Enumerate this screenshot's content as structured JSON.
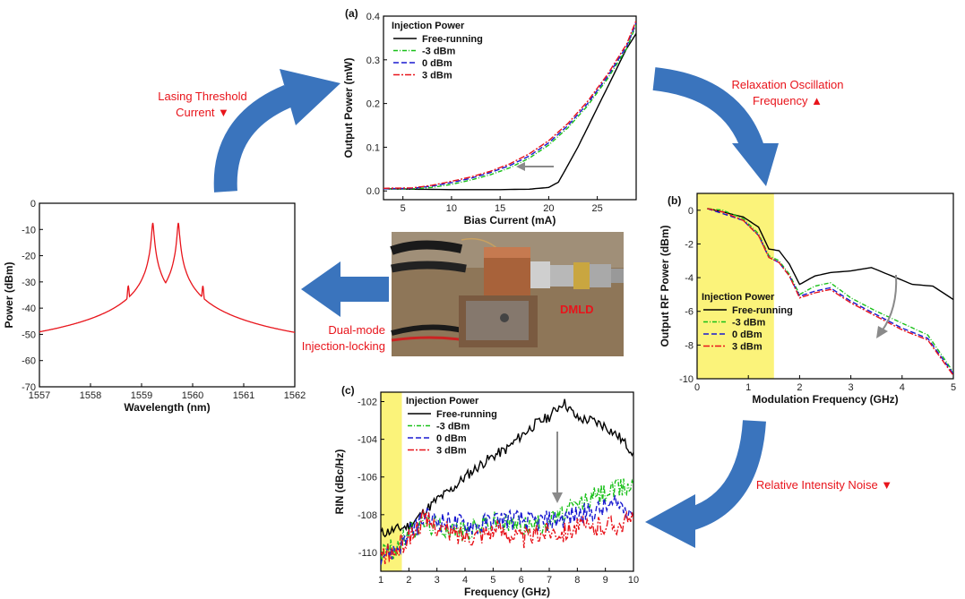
{
  "annotations": {
    "lasing": [
      "Lasing Threshold",
      "Current ▼"
    ],
    "relax": [
      "Relaxation Oscillation",
      "Frequency ▲"
    ],
    "rin": "Relative Intensity Noise ▼",
    "dual": [
      "Dual-mode",
      "Injection-locking"
    ],
    "device": "DMLD"
  },
  "colors": {
    "series": [
      "#000000",
      "#18c018",
      "#1a1ad0",
      "#e8141b"
    ],
    "arrow": "#3a74bd",
    "highlight": "#fbf37a",
    "annotation": "#e8141b"
  },
  "chart_data": [
    {
      "id": "a",
      "panel_label": "(a)",
      "type": "line",
      "xlabel": "Bias Current (mA)",
      "ylabel": "Output Power (mW)",
      "xlim": [
        3,
        29
      ],
      "ylim": [
        -0.02,
        0.4
      ],
      "xticks": [
        5,
        10,
        15,
        20,
        25
      ],
      "yticks": [
        0.0,
        0.1,
        0.2,
        0.3,
        0.4
      ],
      "yticklabels": [
        "0.0",
        "0.1",
        "0.2",
        "0.3",
        "0.4"
      ],
      "legend_title": "Injection Power",
      "legend_position": "top-left",
      "series": [
        {
          "name": "Free-running",
          "dash": "",
          "x": [
            3,
            6,
            10,
            15,
            18,
            20,
            21,
            22,
            23,
            24,
            25,
            26,
            27,
            28,
            29
          ],
          "y": [
            0.005,
            0.004,
            0.003,
            0.003,
            0.004,
            0.008,
            0.02,
            0.06,
            0.1,
            0.145,
            0.19,
            0.235,
            0.28,
            0.325,
            0.36
          ]
        },
        {
          "name": "-3 dBm",
          "dash": "5,2,1,2",
          "x": [
            3,
            6,
            8,
            10,
            12,
            14,
            16,
            18,
            20,
            22,
            24,
            26,
            28,
            29
          ],
          "y": [
            0.005,
            0.005,
            0.008,
            0.015,
            0.025,
            0.037,
            0.053,
            0.075,
            0.105,
            0.145,
            0.195,
            0.255,
            0.325,
            0.38
          ]
        },
        {
          "name": "0 dBm",
          "dash": "6,3",
          "x": [
            3,
            6,
            8,
            10,
            12,
            14,
            16,
            18,
            20,
            22,
            24,
            26,
            28,
            29
          ],
          "y": [
            0.005,
            0.006,
            0.011,
            0.019,
            0.029,
            0.042,
            0.058,
            0.08,
            0.11,
            0.15,
            0.2,
            0.26,
            0.33,
            0.385
          ]
        },
        {
          "name": "3 dBm",
          "dash": "7,2,2,2",
          "x": [
            3,
            6,
            8,
            10,
            12,
            14,
            16,
            18,
            20,
            22,
            24,
            26,
            28,
            29
          ],
          "y": [
            0.006,
            0.007,
            0.013,
            0.022,
            0.032,
            0.045,
            0.062,
            0.085,
            0.115,
            0.155,
            0.205,
            0.265,
            0.335,
            0.39
          ]
        }
      ]
    },
    {
      "id": "b",
      "panel_label": "(b)",
      "type": "line",
      "xlabel": "Modulation Frequency (GHz)",
      "ylabel": "Output RF Power (dBm)",
      "xlim": [
        0,
        5
      ],
      "ylim": [
        -10,
        1
      ],
      "xticks": [
        0,
        1,
        2,
        3,
        4,
        5
      ],
      "yticks": [
        -10,
        -8,
        -6,
        -4,
        -2,
        0
      ],
      "highlight_x": [
        0,
        1.5
      ],
      "legend_title": "Injection Power",
      "legend_position": "lower-left",
      "series": [
        {
          "name": "Free-running",
          "dash": "",
          "x": [
            0.2,
            0.5,
            0.9,
            1.2,
            1.4,
            1.6,
            1.8,
            2.0,
            2.3,
            2.6,
            3.0,
            3.4,
            3.8,
            4.2,
            4.6,
            5.0
          ],
          "y": [
            0.1,
            -0.1,
            -0.4,
            -1.0,
            -2.3,
            -2.4,
            -3.2,
            -4.4,
            -3.9,
            -3.7,
            -3.6,
            -3.4,
            -3.9,
            -4.4,
            -4.5,
            -5.3
          ]
        },
        {
          "name": "-3 dBm",
          "dash": "5,2,1,2",
          "x": [
            0.2,
            0.5,
            0.9,
            1.2,
            1.4,
            1.6,
            1.8,
            2.0,
            2.3,
            2.6,
            3.0,
            3.5,
            4.0,
            4.5,
            5.0
          ],
          "y": [
            0.1,
            0.0,
            -0.5,
            -1.4,
            -2.7,
            -3.0,
            -3.8,
            -5.0,
            -4.5,
            -4.3,
            -5.2,
            -6.0,
            -6.7,
            -7.4,
            -9.6
          ]
        },
        {
          "name": "0 dBm",
          "dash": "6,3",
          "x": [
            0.2,
            0.5,
            0.9,
            1.2,
            1.4,
            1.6,
            1.8,
            2.0,
            2.3,
            2.6,
            3.0,
            3.5,
            4.0,
            4.5,
            5.0
          ],
          "y": [
            0.1,
            -0.2,
            -0.6,
            -1.5,
            -2.8,
            -3.1,
            -3.9,
            -5.1,
            -4.8,
            -4.6,
            -5.4,
            -6.2,
            -7.0,
            -7.6,
            -9.7
          ]
        },
        {
          "name": "3 dBm",
          "dash": "7,2,2,2",
          "x": [
            0.2,
            0.5,
            0.9,
            1.2,
            1.4,
            1.6,
            1.8,
            2.0,
            2.3,
            2.6,
            3.0,
            3.5,
            4.0,
            4.5,
            5.0
          ],
          "y": [
            0.1,
            -0.1,
            -0.6,
            -1.5,
            -2.8,
            -3.1,
            -3.9,
            -5.2,
            -4.9,
            -4.7,
            -5.5,
            -6.3,
            -7.1,
            -7.7,
            -9.8
          ]
        }
      ]
    },
    {
      "id": "c",
      "panel_label": "(c)",
      "type": "line",
      "xlabel": "Frequency (GHz)",
      "ylabel": "RIN (dBc/Hz)",
      "xlim": [
        1,
        10
      ],
      "ylim": [
        -111,
        -101.5
      ],
      "xticks": [
        1,
        2,
        3,
        4,
        5,
        6,
        7,
        8,
        9,
        10
      ],
      "yticks": [
        -110,
        -108,
        -106,
        -104,
        -102
      ],
      "highlight_x": [
        1,
        1.75
      ],
      "legend_title": "Injection Power",
      "legend_position": "top-left",
      "series": [
        {
          "name": "Free-running",
          "dash": "",
          "x": [
            1.0,
            1.5,
            2.0,
            2.5,
            3.0,
            3.5,
            4.0,
            4.5,
            5.0,
            5.5,
            6.0,
            6.5,
            7.0,
            7.5,
            8.0,
            8.5,
            9.0,
            9.5,
            10.0
          ],
          "y": [
            -109.0,
            -108.8,
            -108.6,
            -107.9,
            -107.2,
            -106.7,
            -106.0,
            -105.4,
            -104.9,
            -104.5,
            -103.8,
            -103.2,
            -102.8,
            -102.0,
            -102.9,
            -103.0,
            -103.3,
            -103.9,
            -104.7
          ]
        },
        {
          "name": "-3 dBm",
          "dash": "5,2,1,2",
          "x": [
            1.0,
            1.5,
            2.0,
            2.5,
            3.0,
            3.5,
            4.0,
            4.5,
            5.0,
            5.5,
            6.0,
            6.5,
            7.0,
            7.5,
            8.0,
            8.5,
            9.0,
            9.5,
            10.0
          ],
          "y": [
            -110.0,
            -109.8,
            -109.0,
            -108.4,
            -108.6,
            -108.7,
            -108.9,
            -108.6,
            -108.3,
            -108.5,
            -108.5,
            -108.6,
            -108.3,
            -108.0,
            -107.5,
            -107.1,
            -106.8,
            -106.6,
            -106.4
          ]
        },
        {
          "name": "0 dBm",
          "dash": "6,3",
          "x": [
            1.0,
            1.5,
            2.0,
            2.5,
            3.0,
            3.5,
            4.0,
            4.5,
            5.0,
            5.5,
            6.0,
            6.5,
            7.0,
            7.5,
            8.0,
            8.5,
            9.0,
            9.5,
            10.0
          ],
          "y": [
            -110.1,
            -109.9,
            -109.1,
            -108.2,
            -108.3,
            -108.4,
            -108.5,
            -108.6,
            -108.3,
            -108.2,
            -108.3,
            -108.4,
            -108.3,
            -108.2,
            -108.0,
            -107.9,
            -107.6,
            -107.5,
            -107.8
          ]
        },
        {
          "name": "3 dBm",
          "dash": "7,2,2,2",
          "x": [
            1.0,
            1.5,
            2.0,
            2.5,
            3.0,
            3.5,
            4.0,
            4.5,
            5.0,
            5.5,
            6.0,
            6.5,
            7.0,
            7.5,
            8.0,
            8.5,
            9.0,
            9.5,
            10.0
          ],
          "y": [
            -110.2,
            -110.0,
            -109.2,
            -108.3,
            -108.6,
            -109.0,
            -109.1,
            -109.0,
            -108.8,
            -108.9,
            -109.3,
            -109.1,
            -108.8,
            -108.9,
            -108.6,
            -108.8,
            -108.5,
            -108.5,
            -108.3
          ]
        }
      ]
    },
    {
      "id": "d",
      "panel_label": "",
      "type": "line",
      "xlabel": "Wavelength (nm)",
      "ylabel": "Power (dBm)",
      "xlim": [
        1557,
        1562
      ],
      "ylim": [
        -70,
        0
      ],
      "xticks": [
        1557,
        1558,
        1559,
        1560,
        1561,
        1562
      ],
      "yticks": [
        -70,
        -60,
        -50,
        -40,
        -30,
        -20,
        -10,
        0
      ],
      "series": [
        {
          "name": "",
          "color": "#e8141b",
          "baseline": -61,
          "peaks": [
            {
              "x": 1558.26,
              "y": -58.5
            },
            {
              "x": 1558.74,
              "y": -31.5
            },
            {
              "x": 1558.98,
              "y": -43.0
            },
            {
              "x": 1559.22,
              "y": -7.5
            },
            {
              "x": 1559.47,
              "y": -31.0
            },
            {
              "x": 1559.72,
              "y": -7.5
            },
            {
              "x": 1559.96,
              "y": -45.0
            },
            {
              "x": 1560.2,
              "y": -31.5
            },
            {
              "x": 1560.44,
              "y": -58.0
            }
          ]
        }
      ]
    }
  ]
}
